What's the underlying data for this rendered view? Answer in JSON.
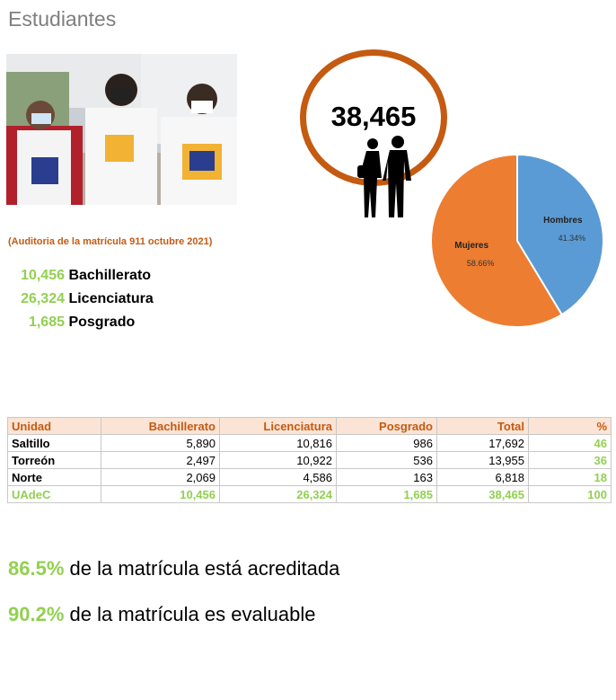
{
  "title": "Estudiantes",
  "total_students": "38,465",
  "audit_note": "(Auditoria de la matrícula 911 octubre 2021)",
  "levels": [
    {
      "value": "10,456",
      "label": "Bachillerato"
    },
    {
      "value": "26,324",
      "label": "Licenciatura"
    },
    {
      "value": "1,685",
      "label": "Posgrado"
    }
  ],
  "chart_data": {
    "type": "pie",
    "slices": [
      {
        "label": "Hombres",
        "value": 41.34,
        "display": "41.34%",
        "color": "#5b9bd5"
      },
      {
        "label": "Mujeres",
        "value": 58.66,
        "display": "58.66%",
        "color": "#ed7d31"
      }
    ]
  },
  "table": {
    "headers": [
      "Unidad",
      "Bachillerato",
      "Licenciatura",
      "Posgrado",
      "Total",
      "%"
    ],
    "rows": [
      [
        "Saltillo",
        "5,890",
        "10,816",
        "986",
        "17,692",
        "46"
      ],
      [
        "Torreón",
        "2,497",
        "10,922",
        "536",
        "13,955",
        "36"
      ],
      [
        "Norte",
        "2,069",
        "4,586",
        "163",
        "6,818",
        "18"
      ],
      [
        "UAdeC",
        "10,456",
        "26,324",
        "1,685",
        "38,465",
        "100"
      ]
    ]
  },
  "accreditation": [
    {
      "pct": "86.5%",
      "text": " de la matrícula está acreditada"
    },
    {
      "pct": "90.2%",
      "text": " de la matrícula es evaluable"
    }
  ],
  "colors": {
    "green": "#92d050",
    "orange": "#c55a11",
    "grey": "#7f7f7f"
  }
}
